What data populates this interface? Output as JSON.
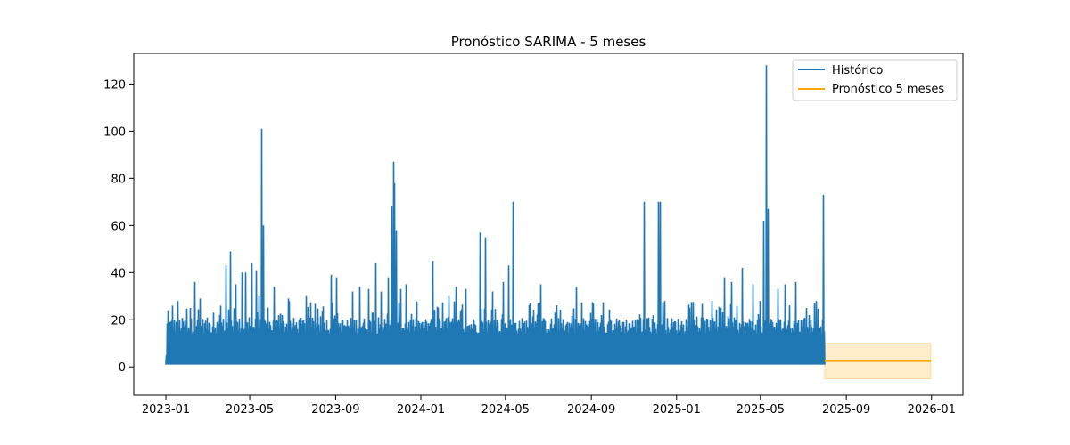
{
  "chart_data": {
    "type": "line",
    "title": "Pronóstico SARIMA - 5 meses",
    "xlabel": "",
    "ylabel": "",
    "xlim": [
      "2022-11-16",
      "2026-02-15"
    ],
    "ylim": [
      -12,
      133
    ],
    "x_ticks": [
      "2023-01",
      "2023-05",
      "2023-09",
      "2024-01",
      "2024-05",
      "2024-09",
      "2025-01",
      "2025-05",
      "2025-09",
      "2026-01"
    ],
    "y_ticks": [
      0,
      20,
      40,
      60,
      80,
      100,
      120
    ],
    "grid": false,
    "legend_position": "top-right",
    "series": [
      {
        "name": "Histórico",
        "color": "#1f77b4",
        "start": "2023-01-01",
        "end": "2025-07-31",
        "min": 1,
        "typical_max": 20,
        "peaks": [
          {
            "x": "2023-01-01",
            "y": 5
          },
          {
            "x": "2023-01-03",
            "y": 24
          },
          {
            "x": "2023-01-10",
            "y": 26
          },
          {
            "x": "2023-01-18",
            "y": 28
          },
          {
            "x": "2023-02-05",
            "y": 25
          },
          {
            "x": "2023-02-11",
            "y": 36
          },
          {
            "x": "2023-02-18",
            "y": 29
          },
          {
            "x": "2023-03-10",
            "y": 23
          },
          {
            "x": "2023-03-20",
            "y": 26
          },
          {
            "x": "2023-03-28",
            "y": 43
          },
          {
            "x": "2023-04-03",
            "y": 49
          },
          {
            "x": "2023-04-10",
            "y": 35
          },
          {
            "x": "2023-04-20",
            "y": 40
          },
          {
            "x": "2023-04-25",
            "y": 40
          },
          {
            "x": "2023-05-03",
            "y": 44
          },
          {
            "x": "2023-05-10",
            "y": 41
          },
          {
            "x": "2023-05-14",
            "y": 30
          },
          {
            "x": "2023-05-18",
            "y": 101
          },
          {
            "x": "2023-05-20",
            "y": 60
          },
          {
            "x": "2023-06-05",
            "y": 34
          },
          {
            "x": "2023-06-25",
            "y": 29
          },
          {
            "x": "2023-07-20",
            "y": 30
          },
          {
            "x": "2023-08-25",
            "y": 39
          },
          {
            "x": "2023-09-02",
            "y": 38
          },
          {
            "x": "2023-09-25",
            "y": 32
          },
          {
            "x": "2023-10-05",
            "y": 34
          },
          {
            "x": "2023-10-18",
            "y": 33
          },
          {
            "x": "2023-10-28",
            "y": 44
          },
          {
            "x": "2023-11-05",
            "y": 32
          },
          {
            "x": "2023-11-15",
            "y": 38
          },
          {
            "x": "2023-11-20",
            "y": 68
          },
          {
            "x": "2023-11-22",
            "y": 87
          },
          {
            "x": "2023-11-24",
            "y": 78
          },
          {
            "x": "2023-11-26",
            "y": 58
          },
          {
            "x": "2023-12-02",
            "y": 33
          },
          {
            "x": "2023-12-10",
            "y": 35
          },
          {
            "x": "2024-01-05",
            "y": 19
          },
          {
            "x": "2024-01-18",
            "y": 45
          },
          {
            "x": "2024-02-10",
            "y": 30
          },
          {
            "x": "2024-02-20",
            "y": 34
          },
          {
            "x": "2024-03-05",
            "y": 33
          },
          {
            "x": "2024-03-25",
            "y": 57
          },
          {
            "x": "2024-04-02",
            "y": 55
          },
          {
            "x": "2024-04-12",
            "y": 32
          },
          {
            "x": "2024-04-28",
            "y": 36
          },
          {
            "x": "2024-05-05",
            "y": 43
          },
          {
            "x": "2024-05-12",
            "y": 70
          },
          {
            "x": "2024-06-05",
            "y": 27
          },
          {
            "x": "2024-06-20",
            "y": 35
          },
          {
            "x": "2024-07-10",
            "y": 23
          },
          {
            "x": "2024-08-10",
            "y": 34
          },
          {
            "x": "2024-09-15",
            "y": 22
          },
          {
            "x": "2024-10-10",
            "y": 20
          },
          {
            "x": "2024-11-15",
            "y": 70
          },
          {
            "x": "2024-12-06",
            "y": 70
          },
          {
            "x": "2024-12-08",
            "y": 70
          },
          {
            "x": "2024-12-15",
            "y": 28
          },
          {
            "x": "2025-01-10",
            "y": 18
          },
          {
            "x": "2025-02-05",
            "y": 21
          },
          {
            "x": "2025-02-20",
            "y": 28
          },
          {
            "x": "2025-03-10",
            "y": 38
          },
          {
            "x": "2025-03-20",
            "y": 36
          },
          {
            "x": "2025-04-05",
            "y": 42
          },
          {
            "x": "2025-04-20",
            "y": 35
          },
          {
            "x": "2025-04-30",
            "y": 28
          },
          {
            "x": "2025-05-05",
            "y": 62
          },
          {
            "x": "2025-05-09",
            "y": 128
          },
          {
            "x": "2025-05-11",
            "y": 67
          },
          {
            "x": "2025-05-25",
            "y": 33
          },
          {
            "x": "2025-06-05",
            "y": 35
          },
          {
            "x": "2025-06-20",
            "y": 36
          },
          {
            "x": "2025-07-05",
            "y": 25
          },
          {
            "x": "2025-07-20",
            "y": 28
          },
          {
            "x": "2025-07-30",
            "y": 73
          }
        ]
      },
      {
        "name": "Pronóstico 5 meses",
        "color": "#ffa500",
        "start": "2025-08-01",
        "end": "2025-12-31",
        "value": 2.5,
        "ci_lower": -5,
        "ci_upper": 10,
        "ci_color": "#ffa500"
      }
    ]
  }
}
